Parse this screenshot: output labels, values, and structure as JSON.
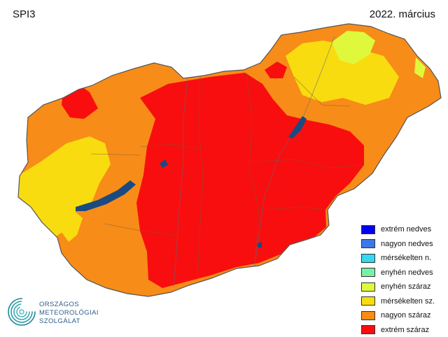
{
  "header": {
    "index_name": "SPI3",
    "date": "2022. március"
  },
  "legend": {
    "items": [
      {
        "label": "extrém nedves",
        "color": "#0000f0"
      },
      {
        "label": "nagyon nedves",
        "color": "#3c78e6"
      },
      {
        "label": "mérsékelten n.",
        "color": "#36d8f0"
      },
      {
        "label": "enyhén nedves",
        "color": "#78f0a8"
      },
      {
        "label": "enyhén száraz",
        "color": "#e0f83c"
      },
      {
        "label": "mérsékelten sz.",
        "color": "#f8dc10"
      },
      {
        "label": "nagyon száraz",
        "color": "#f88c18"
      },
      {
        "label": "extrém száraz",
        "color": "#f80e0e"
      }
    ]
  },
  "water_color": "#1a4a82",
  "logo": {
    "line1": "ORSZÁGOS",
    "line2": "METEOROLÓGIAI",
    "line3": "SZOLGÁLAT",
    "color": "#2c5c8a"
  }
}
